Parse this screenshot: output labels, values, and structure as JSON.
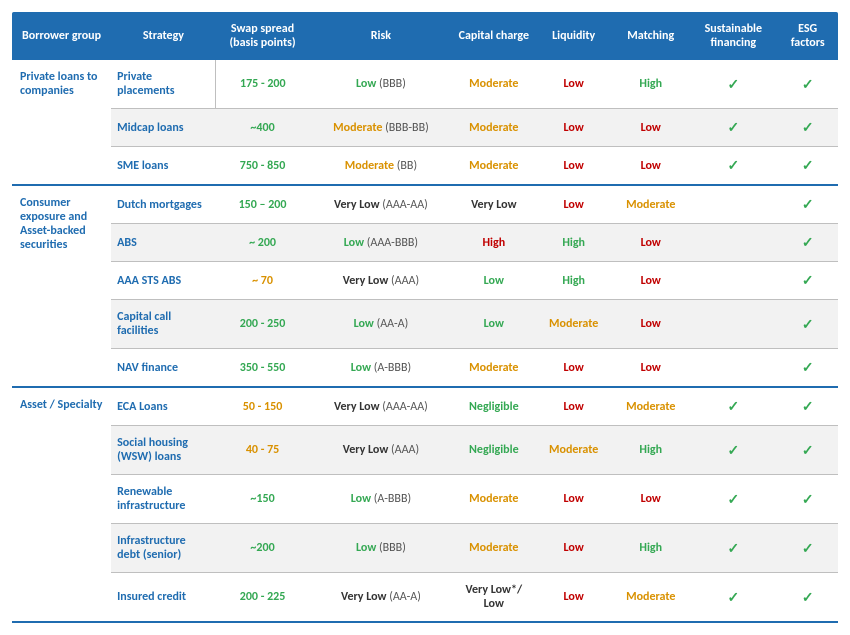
{
  "colors": {
    "header_bg": "#1f6cb0",
    "header_text": "#ffffff",
    "link_blue": "#1f6cb0",
    "green": "#34a853",
    "orange": "#d99100",
    "red": "#c00000",
    "dark": "#333333",
    "grey": "#555555",
    "alt_row": "#f2f2f2",
    "border": "#bfbfbf"
  },
  "headers": {
    "group": "Borrower group",
    "strategy": "Strategy",
    "swap": "Swap spread (basis points)",
    "risk": "Risk",
    "capital": "Capital charge",
    "liquidity": "Liquidity",
    "matching": "Matching",
    "sustainable": "Sustainable financing",
    "esg": "ESG factors"
  },
  "groups": [
    {
      "name": "Private loans to companies",
      "rows": [
        {
          "strategy": "Private placements",
          "swap": {
            "text": "175 - 200",
            "color": "#34a853"
          },
          "risk": {
            "text": "Low",
            "color": "#34a853",
            "rating": "(BBB)"
          },
          "capital": {
            "text": "Moderate",
            "color": "#d99100"
          },
          "liquidity": {
            "text": "Low",
            "color": "#c00000"
          },
          "matching": {
            "text": "High",
            "color": "#34a853"
          },
          "sustainable": true,
          "esg": true,
          "first_in_group": true,
          "alt": false
        },
        {
          "strategy": "Midcap loans",
          "swap": {
            "text": "~400",
            "color": "#34a853"
          },
          "risk": {
            "text": "Moderate",
            "color": "#d99100",
            "rating": "(BBB-BB)"
          },
          "capital": {
            "text": "Moderate",
            "color": "#d99100"
          },
          "liquidity": {
            "text": "Low",
            "color": "#c00000"
          },
          "matching": {
            "text": "Low",
            "color": "#c00000"
          },
          "sustainable": true,
          "esg": true,
          "alt": true
        },
        {
          "strategy": "SME loans",
          "swap": {
            "text": "750 - 850",
            "color": "#34a853"
          },
          "risk": {
            "text": "Moderate",
            "color": "#d99100",
            "rating": "(BB)"
          },
          "capital": {
            "text": "Moderate",
            "color": "#d99100"
          },
          "liquidity": {
            "text": "Low",
            "color": "#c00000"
          },
          "matching": {
            "text": "Low",
            "color": "#c00000"
          },
          "sustainable": true,
          "esg": true,
          "alt": false
        }
      ]
    },
    {
      "name": "Consumer exposure and Asset-backed securities",
      "rows": [
        {
          "strategy": "Dutch mortgages",
          "swap": {
            "text": "150 – 200",
            "color": "#34a853"
          },
          "risk": {
            "text": "Very Low",
            "color": "#333333",
            "rating": "(AAA-AA)"
          },
          "capital": {
            "text": "Very Low",
            "color": "#333333"
          },
          "liquidity": {
            "text": "Low",
            "color": "#c00000"
          },
          "matching": {
            "text": "Moderate",
            "color": "#d99100"
          },
          "sustainable": false,
          "esg": true,
          "alt": false
        },
        {
          "strategy": "ABS",
          "swap": {
            "text": "~ 200",
            "color": "#34a853"
          },
          "risk": {
            "text": "Low",
            "color": "#34a853",
            "rating": "(AAA-BBB)"
          },
          "capital": {
            "text": "High",
            "color": "#c00000"
          },
          "liquidity": {
            "text": "High",
            "color": "#34a853"
          },
          "matching": {
            "text": "Low",
            "color": "#c00000"
          },
          "sustainable": false,
          "esg": true,
          "alt": true
        },
        {
          "strategy": "AAA STS ABS",
          "swap": {
            "text": "~ 70",
            "color": "#d99100"
          },
          "risk": {
            "text": "Very Low",
            "color": "#333333",
            "rating": "(AAA)"
          },
          "capital": {
            "text": "Low",
            "color": "#34a853"
          },
          "liquidity": {
            "text": "High",
            "color": "#34a853"
          },
          "matching": {
            "text": "Low",
            "color": "#c00000"
          },
          "sustainable": false,
          "esg": true,
          "alt": false
        },
        {
          "strategy": "Capital call facilities",
          "swap": {
            "text": "200 - 250",
            "color": "#34a853"
          },
          "risk": {
            "text": "Low",
            "color": "#34a853",
            "rating": "(AA-A)"
          },
          "capital": {
            "text": "Low",
            "color": "#34a853"
          },
          "liquidity": {
            "text": "Moderate",
            "color": "#d99100"
          },
          "matching": {
            "text": "Low",
            "color": "#c00000"
          },
          "sustainable": false,
          "esg": true,
          "alt": true
        },
        {
          "strategy": "NAV finance",
          "swap": {
            "text": "350 - 550",
            "color": "#34a853"
          },
          "risk": {
            "text": "Low",
            "color": "#34a853",
            "rating": "(A-BBB)"
          },
          "capital": {
            "text": "Moderate",
            "color": "#d99100"
          },
          "liquidity": {
            "text": "Low",
            "color": "#c00000"
          },
          "matching": {
            "text": "Low",
            "color": "#c00000"
          },
          "sustainable": false,
          "esg": true,
          "alt": false
        }
      ]
    },
    {
      "name": "Asset / Specialty",
      "rows": [
        {
          "strategy": "ECA Loans",
          "swap": {
            "text": "50 - 150",
            "color": "#d99100"
          },
          "risk": {
            "text": "Very Low",
            "color": "#333333",
            "rating": "(AAA-AA)"
          },
          "capital": {
            "text": "Negligible",
            "color": "#34a853"
          },
          "liquidity": {
            "text": "Low",
            "color": "#c00000"
          },
          "matching": {
            "text": "Moderate",
            "color": "#d99100"
          },
          "sustainable": true,
          "esg": true,
          "alt": false
        },
        {
          "strategy": "Social housing (WSW) loans",
          "swap": {
            "text": "40 - 75",
            "color": "#d99100"
          },
          "risk": {
            "text": "Very Low",
            "color": "#333333",
            "rating": "(AAA)"
          },
          "capital": {
            "text": "Negligible",
            "color": "#34a853"
          },
          "liquidity": {
            "text": "Moderate",
            "color": "#d99100"
          },
          "matching": {
            "text": "High",
            "color": "#34a853"
          },
          "sustainable": true,
          "esg": true,
          "alt": true
        },
        {
          "strategy": "Renewable infrastructure",
          "swap": {
            "text": "~150",
            "color": "#34a853"
          },
          "risk": {
            "text": "Low",
            "color": "#34a853",
            "rating": "(A-BBB)"
          },
          "capital": {
            "text": "Moderate",
            "color": "#d99100"
          },
          "liquidity": {
            "text": "Low",
            "color": "#c00000"
          },
          "matching": {
            "text": "Low",
            "color": "#c00000"
          },
          "sustainable": true,
          "esg": true,
          "alt": false
        },
        {
          "strategy": "Infrastructure debt (senior)",
          "swap": {
            "text": "~200",
            "color": "#34a853"
          },
          "risk": {
            "text": "Low",
            "color": "#34a853",
            "rating": "(BBB)"
          },
          "capital": {
            "text": "Moderate",
            "color": "#d99100"
          },
          "liquidity": {
            "text": "Low",
            "color": "#c00000"
          },
          "matching": {
            "text": "High",
            "color": "#34a853"
          },
          "sustainable": true,
          "esg": true,
          "alt": true
        },
        {
          "strategy": "Insured credit",
          "swap": {
            "text": "200 - 225",
            "color": "#34a853"
          },
          "risk": {
            "text": "Very Low",
            "color": "#333333",
            "rating": "(AA-A)"
          },
          "capital": {
            "text": "Very Low*/\nLow",
            "color": "#333333"
          },
          "liquidity": {
            "text": "Low",
            "color": "#c00000"
          },
          "matching": {
            "text": "Moderate",
            "color": "#d99100"
          },
          "sustainable": true,
          "esg": true,
          "alt": false
        }
      ]
    }
  ]
}
